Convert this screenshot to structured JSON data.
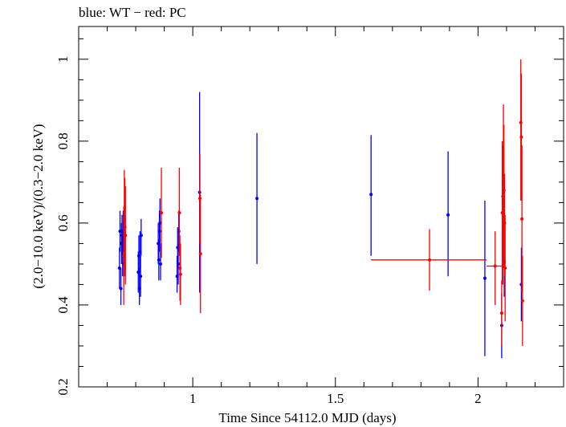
{
  "chart_data": {
    "type": "scatter",
    "title": "blue: WT − red: PC",
    "xlabel": "Time Since 54112.0 MJD (days)",
    "ylabel": "(2.0−10.0 keV)/(0.3−2.0 keV)",
    "xlim": [
      0.6,
      2.3
    ],
    "ylim": [
      0.2,
      1.08
    ],
    "x_ticks": [
      {
        "value": 1.0,
        "label": "1"
      },
      {
        "value": 1.5,
        "label": "1.5"
      },
      {
        "value": 2.0,
        "label": "2"
      }
    ],
    "y_ticks": [
      {
        "value": 0.2,
        "label": "0.2"
      },
      {
        "value": 0.4,
        "label": "0.4"
      },
      {
        "value": 0.6,
        "label": "0.6"
      },
      {
        "value": 0.8,
        "label": "0.8"
      },
      {
        "value": 1.0,
        "label": "1"
      }
    ],
    "grid": false,
    "series": [
      {
        "color": "#0000ff",
        "points": [
          {
            "x": 0.743,
            "y": 0.49,
            "ylo": 0.44,
            "yhi": 0.54
          },
          {
            "x": 0.745,
            "y": 0.58,
            "ylo": 0.53,
            "yhi": 0.63
          },
          {
            "x": 0.748,
            "y": 0.44,
            "ylo": 0.4,
            "yhi": 0.49
          },
          {
            "x": 0.75,
            "y": 0.55,
            "ylo": 0.5,
            "yhi": 0.6
          },
          {
            "x": 0.752,
            "y": 0.57,
            "ylo": 0.52,
            "yhi": 0.62
          },
          {
            "x": 0.754,
            "y": 0.52,
            "ylo": 0.47,
            "yhi": 0.57
          },
          {
            "x": 0.756,
            "y": 0.58,
            "ylo": 0.53,
            "yhi": 0.63
          },
          {
            "x": 0.758,
            "y": 0.5,
            "ylo": 0.45,
            "yhi": 0.55
          },
          {
            "x": 0.809,
            "y": 0.48,
            "ylo": 0.43,
            "yhi": 0.53
          },
          {
            "x": 0.811,
            "y": 0.52,
            "ylo": 0.47,
            "yhi": 0.57
          },
          {
            "x": 0.813,
            "y": 0.44,
            "ylo": 0.4,
            "yhi": 0.49
          },
          {
            "x": 0.815,
            "y": 0.53,
            "ylo": 0.48,
            "yhi": 0.58
          },
          {
            "x": 0.817,
            "y": 0.47,
            "ylo": 0.42,
            "yhi": 0.52
          },
          {
            "x": 0.819,
            "y": 0.57,
            "ylo": 0.52,
            "yhi": 0.61
          },
          {
            "x": 0.879,
            "y": 0.55,
            "ylo": 0.5,
            "yhi": 0.6
          },
          {
            "x": 0.881,
            "y": 0.51,
            "ylo": 0.46,
            "yhi": 0.56
          },
          {
            "x": 0.883,
            "y": 0.58,
            "ylo": 0.53,
            "yhi": 0.63
          },
          {
            "x": 0.885,
            "y": 0.6,
            "ylo": 0.55,
            "yhi": 0.66
          },
          {
            "x": 0.887,
            "y": 0.5,
            "ylo": 0.46,
            "yhi": 0.55
          },
          {
            "x": 0.945,
            "y": 0.47,
            "ylo": 0.43,
            "yhi": 0.52
          },
          {
            "x": 0.947,
            "y": 0.54,
            "ylo": 0.49,
            "yhi": 0.59
          },
          {
            "x": 0.949,
            "y": 0.5,
            "ylo": 0.45,
            "yhi": 0.55
          },
          {
            "x": 0.951,
            "y": 0.58,
            "ylo": 0.53,
            "yhi": 0.63
          },
          {
            "x": 1.024,
            "y": 0.675,
            "ylo": 0.43,
            "yhi": 0.92
          },
          {
            "x": 1.225,
            "y": 0.66,
            "ylo": 0.5,
            "yhi": 0.82
          },
          {
            "x": 1.625,
            "y": 0.67,
            "ylo": 0.52,
            "yhi": 0.815
          },
          {
            "x": 1.895,
            "y": 0.62,
            "ylo": 0.47,
            "yhi": 0.775
          },
          {
            "x": 2.024,
            "y": 0.465,
            "ylo": 0.275,
            "yhi": 0.655
          },
          {
            "x": 2.083,
            "y": 0.35,
            "ylo": 0.27,
            "yhi": 0.43
          },
          {
            "x": 2.092,
            "y": 0.505,
            "ylo": 0.42,
            "yhi": 0.59
          },
          {
            "x": 2.152,
            "y": 0.45,
            "ylo": 0.36,
            "yhi": 0.54
          }
        ]
      },
      {
        "color": "#ff0000",
        "points": [
          {
            "x": 0.758,
            "y": 0.52,
            "ylo": 0.4,
            "yhi": 0.64
          },
          {
            "x": 0.76,
            "y": 0.61,
            "ylo": 0.49,
            "yhi": 0.73
          },
          {
            "x": 0.762,
            "y": 0.59,
            "ylo": 0.47,
            "yhi": 0.71
          },
          {
            "x": 0.764,
            "y": 0.57,
            "ylo": 0.45,
            "yhi": 0.69
          },
          {
            "x": 0.89,
            "y": 0.625,
            "ylo": 0.515,
            "yhi": 0.735
          },
          {
            "x": 0.953,
            "y": 0.625,
            "ylo": 0.52,
            "yhi": 0.735
          },
          {
            "x": 0.955,
            "y": 0.49,
            "ylo": 0.41,
            "yhi": 0.57
          },
          {
            "x": 0.957,
            "y": 0.475,
            "ylo": 0.4,
            "yhi": 0.55
          },
          {
            "x": 1.025,
            "y": 0.66,
            "ylo": 0.55,
            "yhi": 0.77
          },
          {
            "x": 1.027,
            "y": 0.525,
            "ylo": 0.38,
            "yhi": 0.67
          },
          {
            "x": 1.83,
            "y": 0.51,
            "ylo": 0.435,
            "yhi": 0.585,
            "xlo": 1.625,
            "xhi": 2.03
          },
          {
            "x": 2.06,
            "y": 0.495,
            "ylo": 0.4,
            "yhi": 0.58,
            "xlo": 2.03,
            "xhi": 2.09
          },
          {
            "x": 2.083,
            "y": 0.38,
            "ylo": 0.3,
            "yhi": 0.46
          },
          {
            "x": 2.085,
            "y": 0.625,
            "ylo": 0.45,
            "yhi": 0.8
          },
          {
            "x": 2.087,
            "y": 0.665,
            "ylo": 0.45,
            "yhi": 0.79
          },
          {
            "x": 2.089,
            "y": 0.69,
            "ylo": 0.49,
            "yhi": 0.89
          },
          {
            "x": 2.091,
            "y": 0.68,
            "ylo": 0.52,
            "yhi": 0.84
          },
          {
            "x": 2.093,
            "y": 0.6,
            "ylo": 0.47,
            "yhi": 0.72
          },
          {
            "x": 2.095,
            "y": 0.49,
            "ylo": 0.36,
            "yhi": 0.62
          },
          {
            "x": 2.15,
            "y": 0.845,
            "ylo": 0.655,
            "yhi": 1.0
          },
          {
            "x": 2.152,
            "y": 0.81,
            "ylo": 0.655,
            "yhi": 0.965
          },
          {
            "x": 2.154,
            "y": 0.61,
            "ylo": 0.43,
            "yhi": 0.79
          },
          {
            "x": 2.156,
            "y": 0.41,
            "ylo": 0.3,
            "yhi": 0.52
          }
        ]
      }
    ]
  }
}
